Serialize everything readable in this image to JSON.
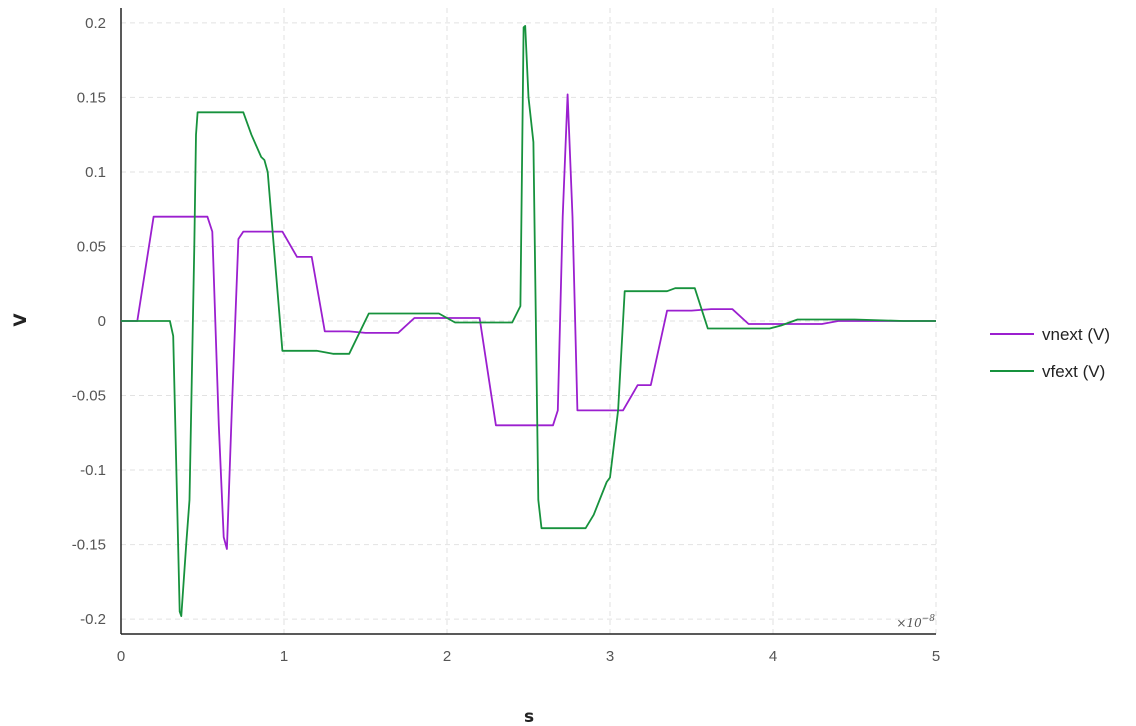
{
  "chart_data": {
    "type": "line",
    "xlabel": "s",
    "ylabel": "V",
    "x_exponent_prefix": "×10",
    "x_exponent": "−8",
    "xlim": [
      0,
      5
    ],
    "ylim": [
      -0.21,
      0.21
    ],
    "xticks": [
      0,
      1,
      2,
      3,
      4,
      5
    ],
    "xtick_labels": [
      "0",
      "1",
      "2",
      "3",
      "4",
      "5"
    ],
    "yticks": [
      -0.2,
      -0.15,
      -0.1,
      -0.05,
      0,
      0.05,
      0.1,
      0.15,
      0.2
    ],
    "ytick_labels": [
      "-0.2",
      "-0.15",
      "-0.1",
      "-0.05",
      "0",
      "0.05",
      "0.1",
      "0.15",
      "0.2"
    ],
    "grid": true,
    "legend_position": "right",
    "series": [
      {
        "name": "vnext (V)",
        "color": "#9b1fcf",
        "x": [
          0,
          0.1,
          0.2,
          0.3,
          0.4,
          0.5,
          0.53,
          0.56,
          0.6,
          0.63,
          0.65,
          0.68,
          0.72,
          0.75,
          0.8,
          0.9,
          0.99,
          1.08,
          1.17,
          1.25,
          1.3,
          1.4,
          1.5,
          1.6,
          1.7,
          1.8,
          1.9,
          2.0,
          2.1,
          2.2,
          2.3,
          2.4,
          2.5,
          2.6,
          2.65,
          2.68,
          2.71,
          2.74,
          2.77,
          2.8,
          2.9,
          3.0,
          3.08,
          3.17,
          3.25,
          3.35,
          3.5,
          3.62,
          3.75,
          3.85,
          4.0,
          4.1,
          4.3,
          4.4,
          4.6,
          4.8,
          5.0
        ],
        "y": [
          0,
          0,
          0.07,
          0.07,
          0.07,
          0.07,
          0.07,
          0.06,
          -0.07,
          -0.145,
          -0.153,
          -0.06,
          0.055,
          0.06,
          0.06,
          0.06,
          0.06,
          0.043,
          0.043,
          -0.007,
          -0.007,
          -0.007,
          -0.008,
          -0.008,
          -0.008,
          0.002,
          0.002,
          0.002,
          0.002,
          0.002,
          -0.07,
          -0.07,
          -0.07,
          -0.07,
          -0.07,
          -0.06,
          0.07,
          0.152,
          0.07,
          -0.06,
          -0.06,
          -0.06,
          -0.06,
          -0.043,
          -0.043,
          0.007,
          0.007,
          0.008,
          0.008,
          -0.002,
          -0.002,
          -0.002,
          -0.002,
          0.0,
          0.0,
          0.0,
          0.0
        ]
      },
      {
        "name": "vfext (V)",
        "color": "#17923d",
        "x": [
          0,
          0.15,
          0.3,
          0.32,
          0.36,
          0.37,
          0.4,
          0.42,
          0.45,
          0.46,
          0.47,
          0.5,
          0.6,
          0.7,
          0.75,
          0.8,
          0.86,
          0.88,
          0.9,
          0.99,
          1.1,
          1.2,
          1.3,
          1.4,
          1.52,
          1.6,
          1.7,
          1.8,
          1.95,
          2.05,
          2.2,
          2.4,
          2.45,
          2.47,
          2.48,
          2.5,
          2.53,
          2.56,
          2.58,
          2.65,
          2.75,
          2.85,
          2.9,
          2.98,
          3.0,
          3.05,
          3.09,
          3.2,
          3.35,
          3.4,
          3.52,
          3.6,
          3.7,
          3.85,
          3.98,
          4.05,
          4.15,
          4.5,
          4.8,
          5.0
        ],
        "y": [
          0,
          0,
          0,
          -0.01,
          -0.195,
          -0.198,
          -0.15,
          -0.12,
          0.05,
          0.125,
          0.14,
          0.14,
          0.14,
          0.14,
          0.14,
          0.125,
          0.11,
          0.108,
          0.1,
          -0.02,
          -0.02,
          -0.02,
          -0.022,
          -0.022,
          0.005,
          0.005,
          0.005,
          0.005,
          0.005,
          -0.001,
          -0.001,
          -0.001,
          0.01,
          0.197,
          0.198,
          0.15,
          0.12,
          -0.12,
          -0.139,
          -0.139,
          -0.139,
          -0.139,
          -0.13,
          -0.108,
          -0.105,
          -0.06,
          0.02,
          0.02,
          0.02,
          0.022,
          0.022,
          -0.005,
          -0.005,
          -0.005,
          -0.005,
          -0.003,
          0.001,
          0.001,
          0.0,
          0.0
        ]
      }
    ]
  }
}
